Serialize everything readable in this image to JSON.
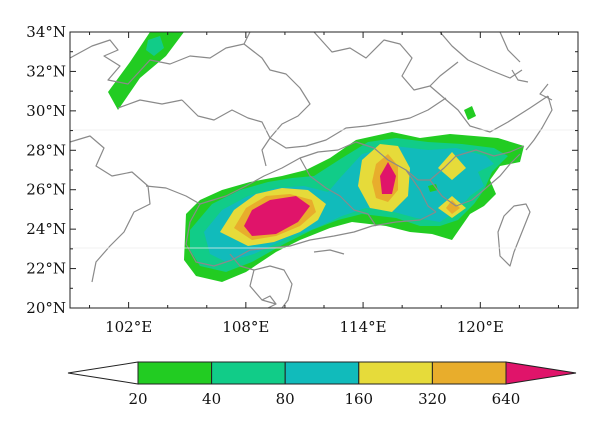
{
  "map": {
    "lat_labels": [
      "34°N",
      "32°N",
      "30°N",
      "28°N",
      "26°N",
      "24°N",
      "22°N",
      "20°N"
    ],
    "lon_labels": [
      "102°E",
      "108°E",
      "114°E",
      "120°E"
    ],
    "lat_range": [
      20,
      34
    ],
    "lon_range": [
      99,
      125
    ],
    "colors": {
      "c20": "#22cc22",
      "c40": "#11cc88",
      "c80": "#11bbbb",
      "c160": "#e6db3a",
      "c320": "#e8ad2c",
      "c640": "#e0146a",
      "border": "#888888"
    }
  },
  "colorbar": {
    "tick_labels": [
      "20",
      "40",
      "80",
      "160",
      "320",
      "640"
    ],
    "colors": [
      "#ffffff",
      "#22cc22",
      "#11cc88",
      "#11bbbb",
      "#e6db3a",
      "#e8ad2c",
      "#e0146a"
    ]
  }
}
